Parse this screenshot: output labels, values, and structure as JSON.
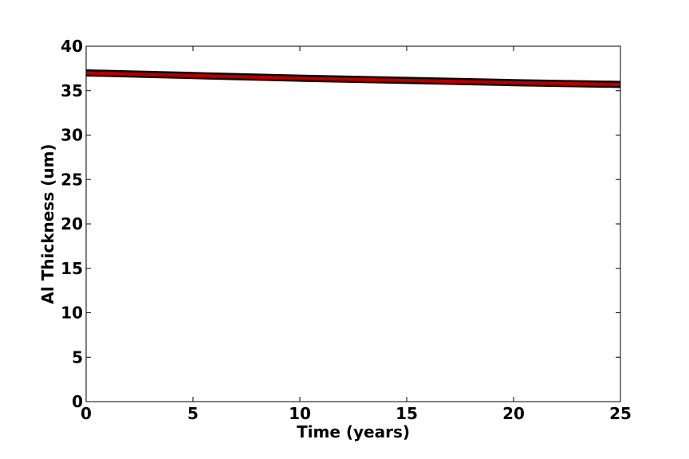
{
  "chart_data": {
    "type": "line",
    "title": "",
    "xlabel": "Time (years)",
    "ylabel": "Al Thickness (um)",
    "xlim": [
      0,
      25
    ],
    "ylim": [
      0,
      40
    ],
    "xticks": [
      "0",
      "5",
      "10",
      "15",
      "20",
      "25"
    ],
    "yticks": [
      "0",
      "5",
      "10",
      "15",
      "20",
      "25",
      "30",
      "35",
      "40"
    ],
    "grid": false,
    "legend": "none",
    "series": [
      {
        "color": "#b30000",
        "x": [
          0,
          5,
          10,
          15,
          20,
          25
        ],
        "y": [
          37.0,
          36.7,
          36.4,
          36.15,
          35.9,
          35.7
        ]
      }
    ]
  }
}
